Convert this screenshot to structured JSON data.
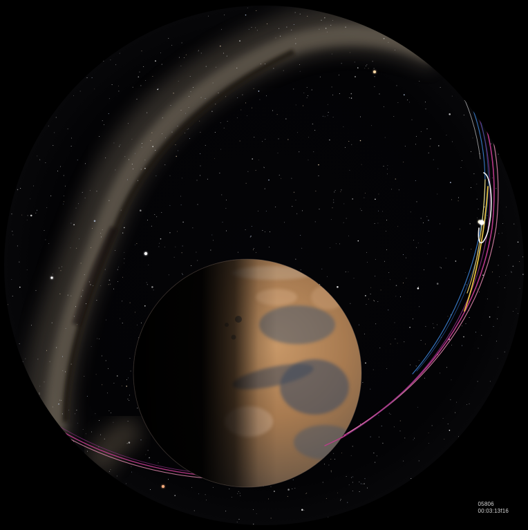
{
  "scene": {
    "objects": [
      "fisheye-dome-sky",
      "milky-way-band",
      "star-field",
      "mars-planet",
      "orbit-trails"
    ],
    "colors": {
      "sky": "#030305",
      "milky_way": "#b9a98f",
      "mars_day": "#b8865a",
      "mars_dark": "#3c4a5c",
      "orbit_magenta": "#c23a8f",
      "orbit_pink": "#e38ab0",
      "orbit_yellow": "#f0c640",
      "orbit_blue": "#3a7fd0",
      "orbit_white": "#ffffff"
    }
  },
  "overlay": {
    "frame_number": "05806",
    "timecode": "00:03:13f16"
  }
}
